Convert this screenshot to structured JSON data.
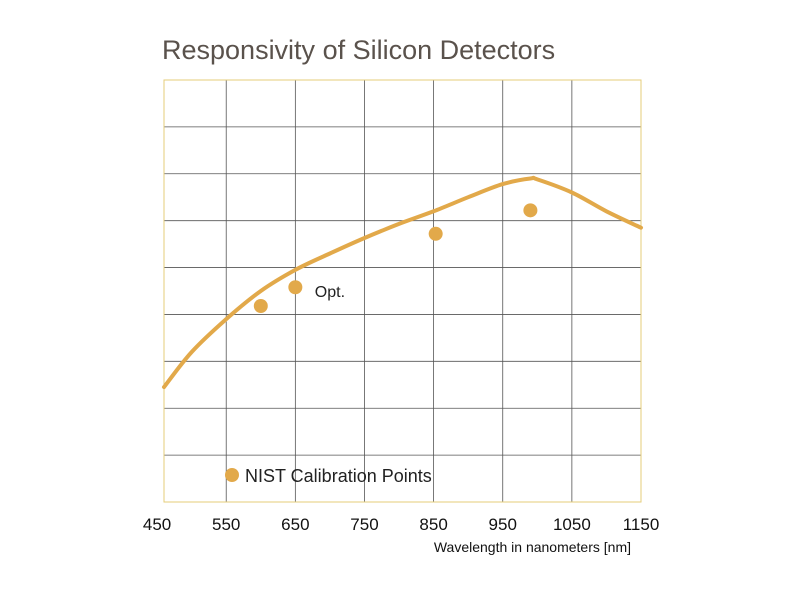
{
  "chart_data": {
    "type": "line",
    "title": "Responsivity of Silicon Detectors",
    "xlabel": "Wavelength in nanometers [nm]",
    "ylabel": "",
    "xlim": [
      460,
      1150
    ],
    "ylim": [
      0,
      9
    ],
    "x_ticks": [
      450,
      550,
      650,
      750,
      850,
      950,
      1050,
      1150
    ],
    "y_gridlines": 9,
    "grid": true,
    "colors": {
      "curve": "#e2a94a",
      "points": "#e2a94a",
      "grid": "#555555",
      "frame": "#e5cc7a"
    },
    "series": [
      {
        "x": [
          460,
          500,
          550,
          600,
          650,
          700,
          750,
          800,
          850,
          900,
          950,
          990,
          1000,
          1050,
          1100,
          1150
        ],
        "y": [
          2.45,
          3.2,
          3.9,
          4.5,
          4.95,
          5.3,
          5.63,
          5.93,
          6.2,
          6.5,
          6.78,
          6.9,
          6.88,
          6.6,
          6.2,
          5.85
        ]
      }
    ],
    "calibration_points": {
      "name": "NIST Calibration Points",
      "x": [
        600,
        650,
        853,
        990
      ],
      "y": [
        4.18,
        4.58,
        5.72,
        6.22
      ]
    },
    "annotations": [
      {
        "text": "Opt.",
        "x": 700,
        "y": 4.37
      }
    ],
    "legend": {
      "label": "NIST Calibration Points",
      "position": "bottom-left"
    }
  }
}
